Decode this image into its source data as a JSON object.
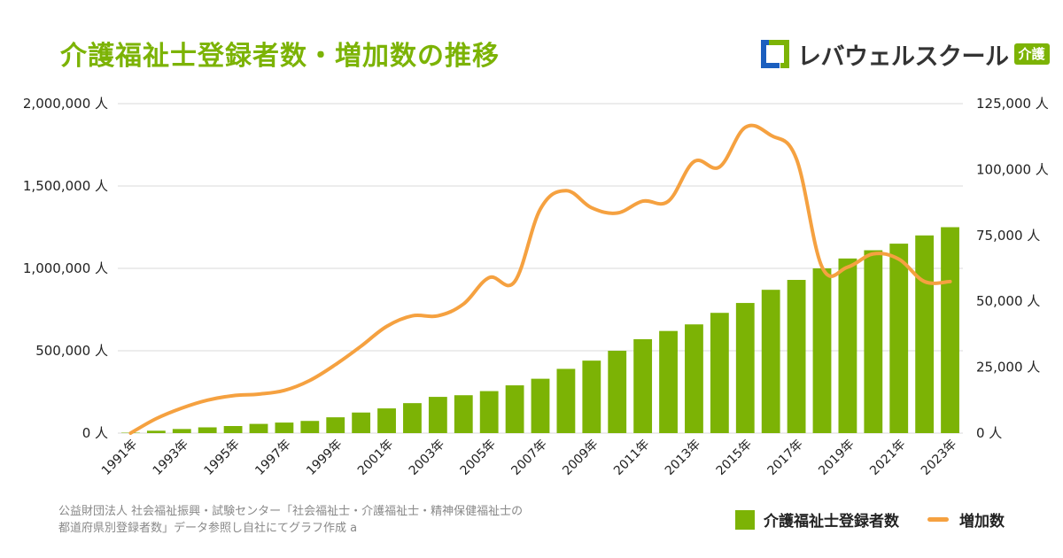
{
  "title": "介護福祉士登録者数・増加数の推移",
  "brand": {
    "name": "レバウェルスクール",
    "badge": "介護"
  },
  "source_line1": "公益財団法人 社会福祉振興・試験センター「社会福祉士・介護福祉士・精神保健福祉士の",
  "source_line2": "都道府県別登録者数」データ参照し自社にてグラフ作成 a",
  "colors": {
    "bar": "#7cb305",
    "line": "#f5a140",
    "title": "#7cb305",
    "grid": "#d9d9d9",
    "logo_blue": "#1b5fbf"
  },
  "legend": {
    "bar_label": "介護福祉士登録者数",
    "line_label": "増加数"
  },
  "chart_data": {
    "type": "bar+line",
    "title": "介護福祉士登録者数・増加数の推移",
    "unit": "人",
    "years": [
      1991,
      1992,
      1993,
      1994,
      1995,
      1996,
      1997,
      1998,
      1999,
      2000,
      2001,
      2002,
      2003,
      2004,
      2005,
      2006,
      2007,
      2008,
      2009,
      2010,
      2011,
      2012,
      2013,
      2014,
      2015,
      2016,
      2017,
      2018,
      2019,
      2020,
      2021,
      2022,
      2023
    ],
    "x_tick_labels": [
      "1991年",
      "1993年",
      "1995年",
      "1997年",
      "1999年",
      "2001年",
      "2003年",
      "2005年",
      "2007年",
      "2009年",
      "2011年",
      "2013年",
      "2015年",
      "2017年",
      "2019年",
      "2021年",
      "2023年"
    ],
    "series": [
      {
        "name": "介護福祉士登録者数",
        "type": "bar",
        "axis": "left",
        "values": [
          2600,
          14500,
          25000,
          35000,
          43000,
          56000,
          64000,
          74000,
          96000,
          125000,
          150000,
          182000,
          220000,
          230000,
          255000,
          290000,
          330000,
          390000,
          440000,
          500000,
          570000,
          620000,
          660000,
          730000,
          790000,
          870000,
          930000,
          1000000,
          1060000,
          1110000,
          1150000,
          1200000,
          1250000
        ]
      },
      {
        "name": "増加数",
        "type": "line",
        "axis": "right",
        "values": [
          0,
          5500,
          9500,
          12500,
          14200,
          14800,
          16200,
          20000,
          26000,
          33000,
          40500,
          44500,
          44500,
          49000,
          59000,
          57500,
          85000,
          92000,
          85500,
          83500,
          88000,
          88000,
          103000,
          101000,
          116000,
          113000,
          104000,
          63000,
          63000,
          68000,
          66000,
          57500,
          57500
        ]
      }
    ],
    "left_axis": {
      "min": 0,
      "max": 2000000,
      "ticks": [
        0,
        500000,
        1000000,
        1500000,
        2000000
      ],
      "tick_labels": [
        "0 人",
        "500,000 人",
        "1,000,000 人",
        "1,500,000 人",
        "2,000,000 人"
      ]
    },
    "right_axis": {
      "min": 0,
      "max": 125000,
      "ticks": [
        0,
        25000,
        50000,
        75000,
        100000,
        125000
      ],
      "tick_labels": [
        "0 人",
        "25,000 人",
        "50,000 人",
        "75,000 人",
        "100,000 人",
        "125,000 人"
      ]
    },
    "grid": true,
    "legend_position": "bottom-right"
  }
}
